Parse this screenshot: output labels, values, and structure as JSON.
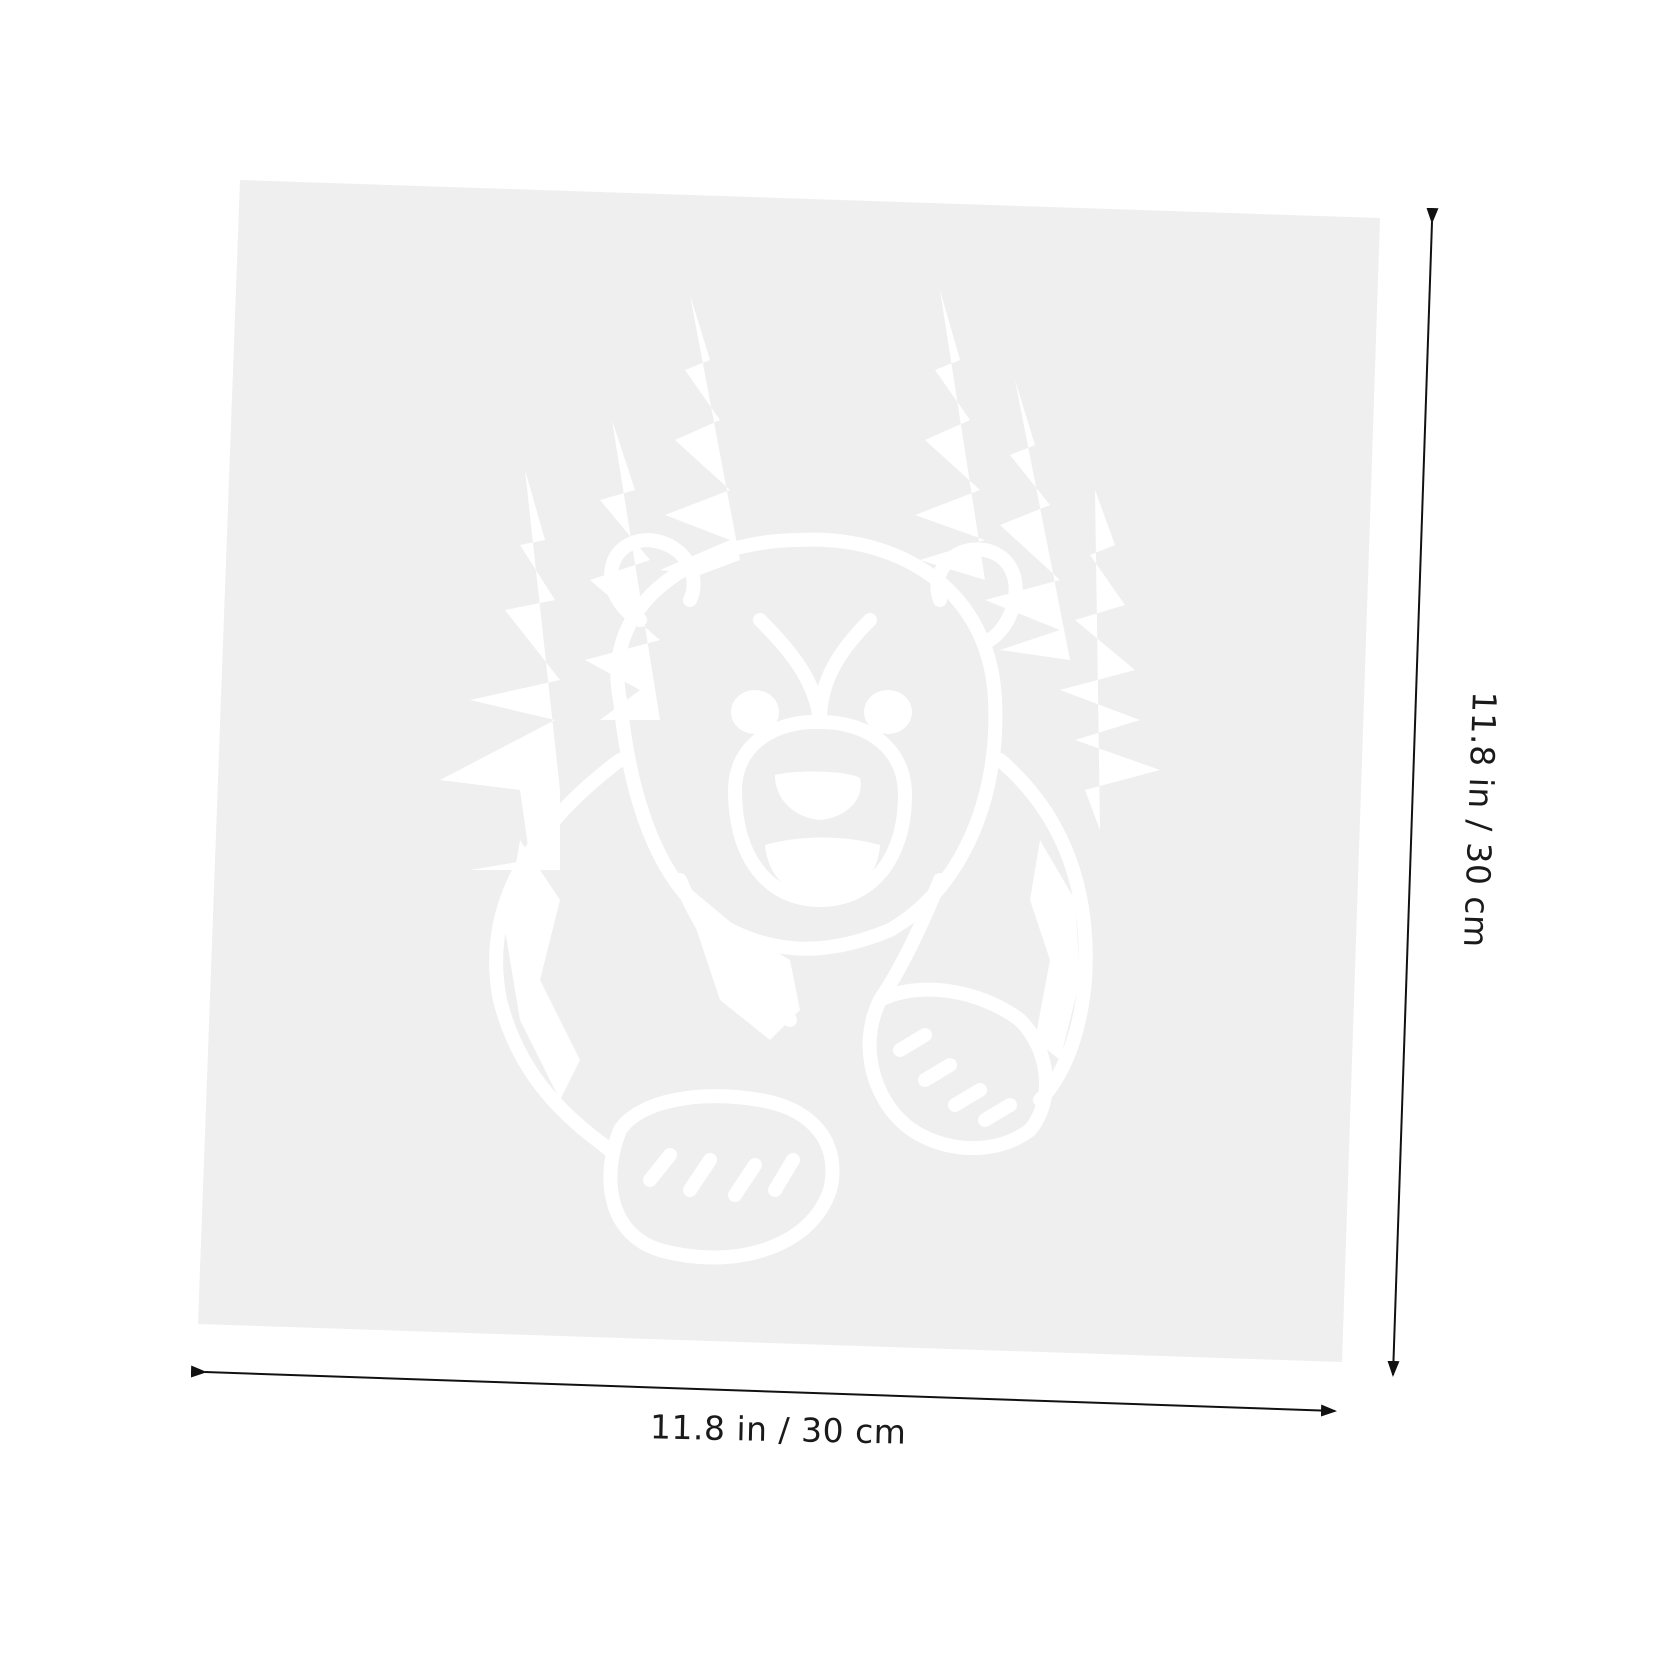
{
  "product": {
    "subject": "stencil-sheet",
    "artwork": "bear-with-pine-trees",
    "sheet_color": "#efefef",
    "cutout_color": "#ffffff",
    "arrow_color": "#111111"
  },
  "dimensions": {
    "width_label": "11.8 in / 30 cm",
    "height_label": "11.8 in / 30 cm"
  }
}
